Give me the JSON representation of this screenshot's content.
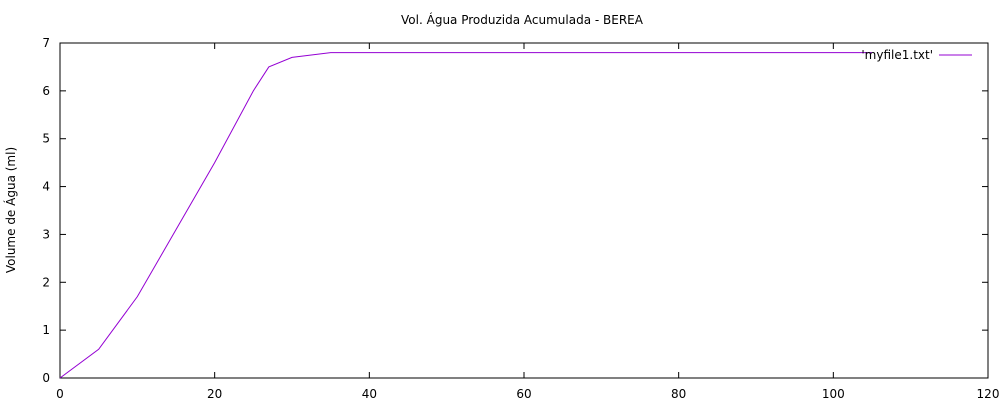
{
  "chart_data": {
    "type": "line",
    "title": "Vol. Água Produzida Acumulada - BEREA",
    "xlabel": "",
    "ylabel": "Volume de Água (ml)",
    "xlim": [
      0,
      120
    ],
    "ylim": [
      0,
      7
    ],
    "xticks": [
      0,
      20,
      40,
      60,
      80,
      100,
      120
    ],
    "yticks": [
      0,
      1,
      2,
      3,
      4,
      5,
      6,
      7
    ],
    "grid": false,
    "legend_position": "top-right",
    "series": [
      {
        "name": "'myfile1.txt'",
        "color": "#9400d3",
        "x": [
          0,
          5,
          10,
          15,
          20,
          25,
          27,
          30,
          35,
          40,
          60,
          80,
          100,
          105
        ],
        "y": [
          0,
          0.6,
          1.7,
          3.1,
          4.5,
          6.0,
          6.5,
          6.7,
          6.8,
          6.8,
          6.8,
          6.8,
          6.8,
          6.8
        ]
      }
    ]
  }
}
